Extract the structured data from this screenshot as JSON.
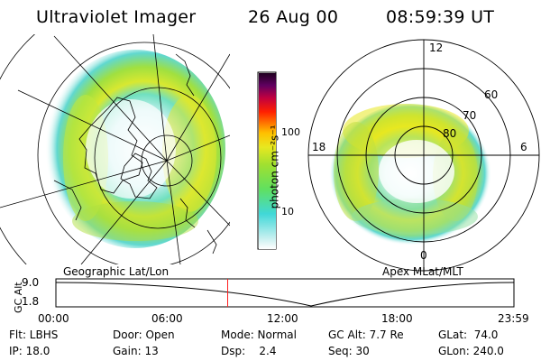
{
  "header": {
    "title": "Ultraviolet Imager",
    "date": "26 Aug 00",
    "time": "08:59:39 UT"
  },
  "panels": {
    "left_label": "Geographic Lat/Lon",
    "right_label": "Apex MLat/MLT"
  },
  "colorbar": {
    "unit_label": "photon cm⁻²s⁻¹",
    "ticks": [
      "100",
      "10"
    ],
    "colors": [
      "#ffffff",
      "#c8f0f0",
      "#40d8d8",
      "#60e060",
      "#a0e030",
      "#e8e820",
      "#ffc000",
      "#ff7000",
      "#ff2000",
      "#c00040",
      "#600060",
      "#200020"
    ]
  },
  "polar_plot": {
    "mlt_labels": {
      "top": "12",
      "left": "18",
      "right": "6",
      "bottom": "0"
    },
    "lat_labels": [
      "60",
      "70",
      "80"
    ]
  },
  "timeline": {
    "y_axis_label": "GC Alt",
    "y_ticks": [
      "9.0",
      "1.8"
    ],
    "x_ticks": [
      "00:00",
      "06:00",
      "12:00",
      "18:00",
      "23:59"
    ],
    "current_time_fraction": 0.375
  },
  "info": {
    "row1": {
      "flt": "Flt: LBHS",
      "door": "Door: Open",
      "mode": "Mode: Normal",
      "gcalt": "GC Alt: 7.7 Re",
      "glat": "GLat:  74.0"
    },
    "row2": {
      "ip": "IP: 18.0",
      "gain": "Gain: 13",
      "dsp": "Dsp:    2.4",
      "seq": "Seq: 30",
      "glon": "GLon: 240.0"
    }
  }
}
